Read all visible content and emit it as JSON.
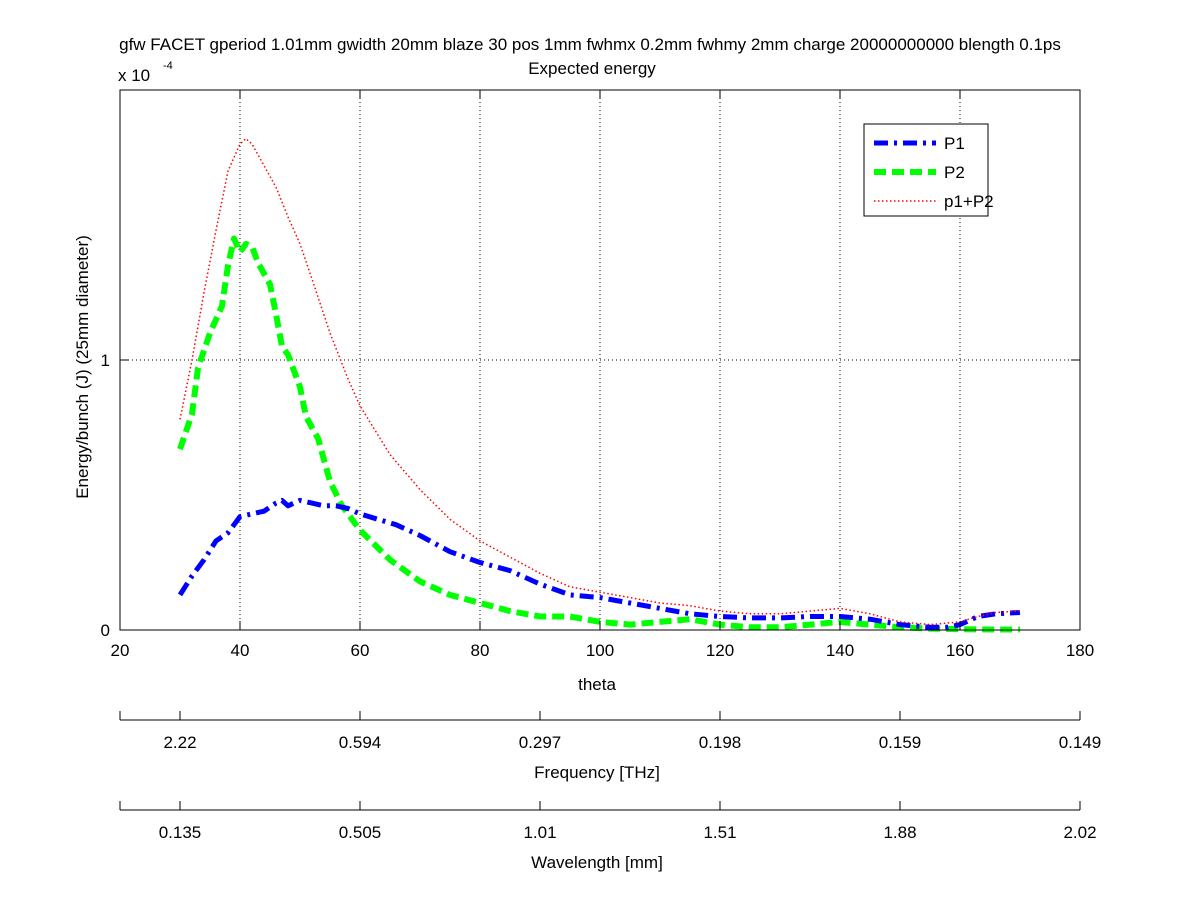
{
  "chart_data": {
    "type": "line",
    "title_line1": "gfw FACET gperiod 1.01mm gwidth 20mm blaze 30 pos 1mm fwhmx 0.2mm fwhmy 2mm charge 20000000000 blength 0.1ps",
    "title_line2": "Expected energy",
    "exponent_label": "x 10",
    "exponent_power": "-4",
    "xlabel": "theta",
    "ylabel": "Energy/bunch (J) (25mm diameter)",
    "xlim": [
      20,
      180
    ],
    "ylim": [
      0,
      1.9
    ],
    "y_scale_factor": "1e-4",
    "grid": true,
    "legend_position": "top-right",
    "x_ticks": [
      "20",
      "40",
      "60",
      "80",
      "100",
      "120",
      "140",
      "160",
      "180"
    ],
    "y_ticks": [
      {
        "value": 0,
        "label": "0"
      },
      {
        "value": 1,
        "label": "1"
      }
    ],
    "series": [
      {
        "name": "P1",
        "color": "#0000ff",
        "style": "dashdot",
        "points": [
          [
            30,
            0.13
          ],
          [
            32,
            0.2
          ],
          [
            34,
            0.26
          ],
          [
            36,
            0.33
          ],
          [
            38,
            0.36
          ],
          [
            40,
            0.42
          ],
          [
            42,
            0.43
          ],
          [
            44,
            0.44
          ],
          [
            46,
            0.47
          ],
          [
            47,
            0.48
          ],
          [
            48,
            0.46
          ],
          [
            50,
            0.48
          ],
          [
            52,
            0.47
          ],
          [
            54,
            0.46
          ],
          [
            56,
            0.46
          ],
          [
            58,
            0.45
          ],
          [
            60,
            0.43
          ],
          [
            63,
            0.41
          ],
          [
            66,
            0.39
          ],
          [
            70,
            0.35
          ],
          [
            75,
            0.29
          ],
          [
            80,
            0.25
          ],
          [
            85,
            0.22
          ],
          [
            90,
            0.17
          ],
          [
            95,
            0.13
          ],
          [
            100,
            0.12
          ],
          [
            105,
            0.1
          ],
          [
            110,
            0.08
          ],
          [
            115,
            0.06
          ],
          [
            120,
            0.05
          ],
          [
            125,
            0.045
          ],
          [
            130,
            0.045
          ],
          [
            135,
            0.05
          ],
          [
            140,
            0.05
          ],
          [
            145,
            0.04
          ],
          [
            150,
            0.02
          ],
          [
            155,
            0.01
          ],
          [
            158,
            0.01
          ],
          [
            160,
            0.02
          ],
          [
            163,
            0.05
          ],
          [
            166,
            0.06
          ],
          [
            170,
            0.065
          ]
        ]
      },
      {
        "name": "P2",
        "color": "#00ff00",
        "style": "dashed",
        "points": [
          [
            30,
            0.67
          ],
          [
            32,
            0.8
          ],
          [
            33,
            0.97
          ],
          [
            35,
            1.1
          ],
          [
            37,
            1.2
          ],
          [
            38,
            1.35
          ],
          [
            39,
            1.45
          ],
          [
            40,
            1.4
          ],
          [
            41,
            1.43
          ],
          [
            42,
            1.42
          ],
          [
            43,
            1.36
          ],
          [
            45,
            1.28
          ],
          [
            46,
            1.17
          ],
          [
            47,
            1.05
          ],
          [
            48,
            1.02
          ],
          [
            50,
            0.9
          ],
          [
            51,
            0.79
          ],
          [
            53,
            0.71
          ],
          [
            55,
            0.55
          ],
          [
            57,
            0.46
          ],
          [
            60,
            0.37
          ],
          [
            65,
            0.26
          ],
          [
            70,
            0.18
          ],
          [
            75,
            0.13
          ],
          [
            80,
            0.1
          ],
          [
            85,
            0.07
          ],
          [
            90,
            0.05
          ],
          [
            95,
            0.05
          ],
          [
            100,
            0.03
          ],
          [
            105,
            0.02
          ],
          [
            110,
            0.03
          ],
          [
            115,
            0.04
          ],
          [
            120,
            0.02
          ],
          [
            125,
            0.01
          ],
          [
            130,
            0.01
          ],
          [
            135,
            0.02
          ],
          [
            140,
            0.03
          ],
          [
            145,
            0.02
          ],
          [
            150,
            0.01
          ],
          [
            155,
            0.005
          ],
          [
            160,
            0.003
          ],
          [
            165,
            0.002
          ],
          [
            170,
            0.002
          ]
        ]
      },
      {
        "name": "p1+P2",
        "color": "#ff0000",
        "style": "dotted",
        "points": [
          [
            30,
            0.78
          ],
          [
            32,
            1.0
          ],
          [
            34,
            1.25
          ],
          [
            36,
            1.48
          ],
          [
            38,
            1.7
          ],
          [
            40,
            1.8
          ],
          [
            41,
            1.82
          ],
          [
            42,
            1.8
          ],
          [
            44,
            1.72
          ],
          [
            46,
            1.64
          ],
          [
            48,
            1.53
          ],
          [
            50,
            1.43
          ],
          [
            52,
            1.3
          ],
          [
            55,
            1.1
          ],
          [
            58,
            0.93
          ],
          [
            60,
            0.83
          ],
          [
            65,
            0.65
          ],
          [
            70,
            0.52
          ],
          [
            75,
            0.41
          ],
          [
            80,
            0.33
          ],
          [
            85,
            0.27
          ],
          [
            90,
            0.21
          ],
          [
            95,
            0.16
          ],
          [
            100,
            0.14
          ],
          [
            105,
            0.12
          ],
          [
            110,
            0.1
          ],
          [
            115,
            0.09
          ],
          [
            120,
            0.07
          ],
          [
            125,
            0.06
          ],
          [
            130,
            0.06
          ],
          [
            135,
            0.07
          ],
          [
            140,
            0.08
          ],
          [
            145,
            0.06
          ],
          [
            150,
            0.03
          ],
          [
            155,
            0.02
          ],
          [
            160,
            0.03
          ],
          [
            163,
            0.05
          ],
          [
            166,
            0.065
          ],
          [
            170,
            0.07
          ]
        ]
      }
    ],
    "frequency_axis": {
      "label": "Frequency [THz]",
      "ticks": [
        {
          "theta": 30,
          "label": "2.22"
        },
        {
          "theta": 60,
          "label": "0.594"
        },
        {
          "theta": 90,
          "label": "0.297"
        },
        {
          "theta": 120,
          "label": "0.198"
        },
        {
          "theta": 150,
          "label": "0.159"
        },
        {
          "theta": 180,
          "label": "0.149"
        }
      ]
    },
    "wavelength_axis": {
      "label": "Wavelength [mm]",
      "ticks": [
        {
          "theta": 30,
          "label": "0.135"
        },
        {
          "theta": 60,
          "label": "0.505"
        },
        {
          "theta": 90,
          "label": "1.01"
        },
        {
          "theta": 120,
          "label": "1.51"
        },
        {
          "theta": 150,
          "label": "1.88"
        },
        {
          "theta": 180,
          "label": "2.02"
        }
      ]
    }
  }
}
